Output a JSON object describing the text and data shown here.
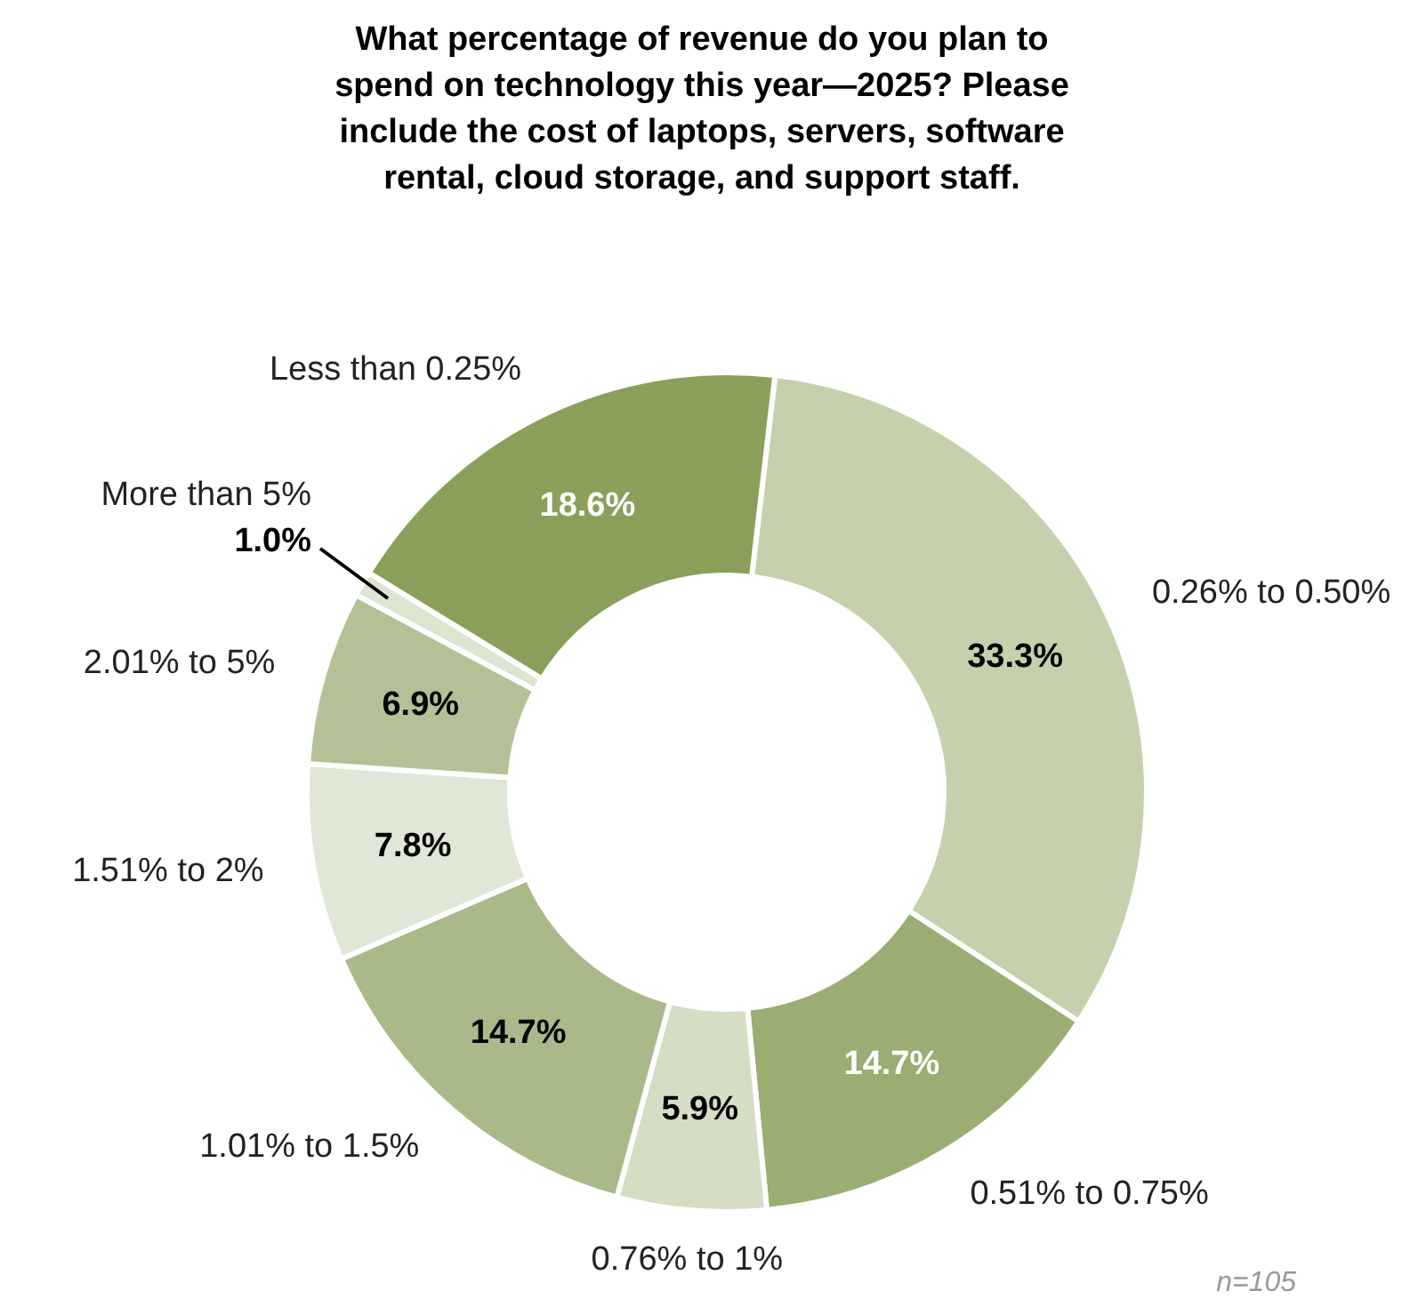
{
  "chart_data": {
    "type": "donut",
    "title": "What percentage of revenue do you plan to spend on technology this year—2025? Please include the cost of laptops, servers, software rental, cloud storage, and support staff.",
    "categories": [
      "0.26% to 0.50%",
      "0.51% to 0.75%",
      "0.76% to 1%",
      "1.01% to 1.5%",
      "1.51% to 2%",
      "2.01% to 5%",
      "More than 5%",
      "Less than 0.25%"
    ],
    "values": [
      33.3,
      14.7,
      5.9,
      14.7,
      7.8,
      6.9,
      1.0,
      18.6
    ],
    "value_labels": [
      "33.3%",
      "14.7%",
      "5.9%",
      "14.7%",
      "7.8%",
      "6.9%",
      "1.0%",
      "18.6%"
    ],
    "colors": [
      "#c5d0ad",
      "#9aad72",
      "#d5ddc5",
      "#aab98a",
      "#e1e7d6",
      "#b4c196",
      "#dde4d0",
      "#8aa05a"
    ],
    "annotations": [
      "n=105"
    ]
  }
}
